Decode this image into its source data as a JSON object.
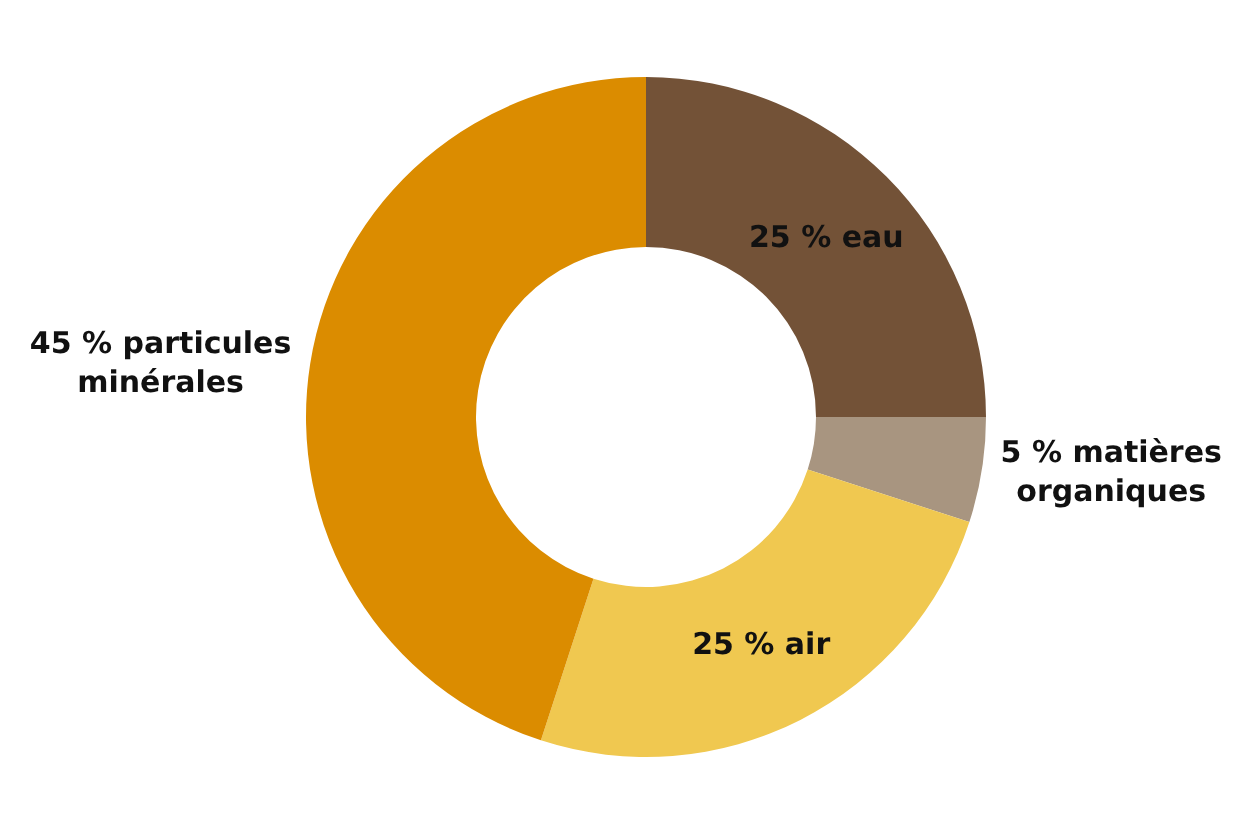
{
  "chart_data": {
    "type": "donut",
    "values": [
      25,
      5,
      25,
      45
    ],
    "colors": [
      "#735237",
      "#a89580",
      "#f0c850",
      "#db8c00"
    ],
    "value_labels": [
      "25 % eau",
      "5 % matières\norganiques",
      "25 % air",
      "45 % particules\nminérales"
    ],
    "legend": false
  }
}
